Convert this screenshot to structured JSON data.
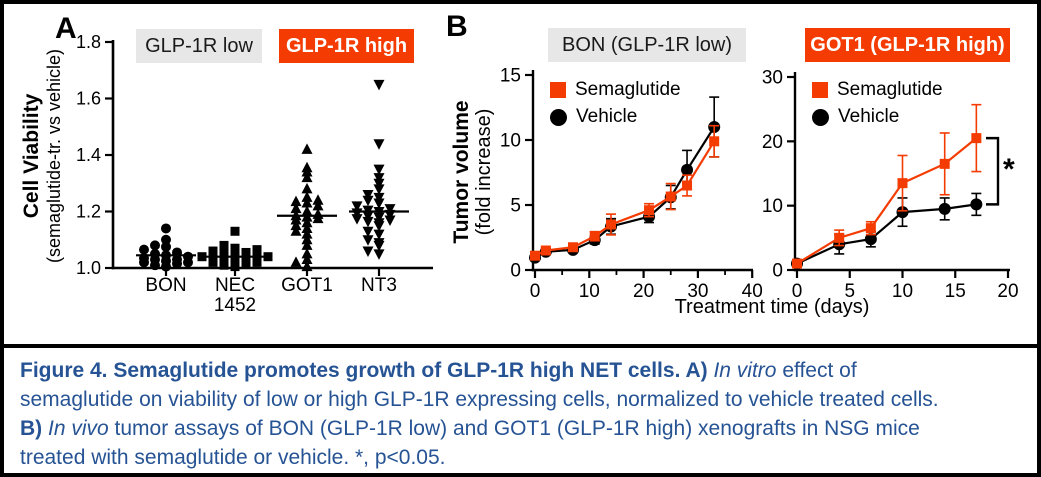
{
  "figure": {
    "panel_a_label": "A",
    "panel_b_label": "B",
    "colors": {
      "accent_red": "#F43B02",
      "box_gray": "#E7E7E7",
      "caption_blue": "#265394",
      "black": "#000000"
    },
    "panel_a": {
      "group_low_label": "GLP-1R low",
      "group_high_label": "GLP-1R high",
      "y_title": "Cell Viability",
      "y_subtitle": "(semaglutide-tr. vs vehicle)"
    },
    "panel_b": {
      "left_title": "BON (GLP-1R low)",
      "right_title": "GOT1 (GLP-1R high)",
      "y_title": "Tumor volume",
      "y_subtitle": "(fold increase)",
      "x_title": "Treatment time (days)",
      "legend": [
        "Semaglutide",
        "Vehicle"
      ],
      "significance": "*"
    }
  },
  "chart_data": [
    {
      "id": "panel-a",
      "type": "scatter",
      "title": "Cell viability of NET cell lines, semaglutide-treated vs vehicle",
      "ylabel": "Cell Viability (semaglutide-tr. vs vehicle)",
      "ylim": [
        1.0,
        1.8
      ],
      "yticks": [
        1.0,
        1.2,
        1.4,
        1.6,
        1.8
      ],
      "categories": [
        "BON",
        "NEC 1452",
        "GOT1",
        "NT3"
      ],
      "category_markers": [
        "circle",
        "square",
        "triangle-up",
        "triangle-down"
      ],
      "groups": [
        {
          "label": "GLP-1R low",
          "categories": [
            "BON",
            "NEC 1452"
          ]
        },
        {
          "label": "GLP-1R high",
          "categories": [
            "GOT1",
            "NT3"
          ]
        }
      ],
      "values": {
        "BON": [
          1.005,
          1.01,
          1.015,
          1.02,
          1.02,
          1.025,
          1.03,
          1.03,
          1.035,
          1.04,
          1.045,
          1.05,
          1.055,
          1.065,
          1.075,
          1.08,
          1.1,
          1.14
        ],
        "NEC 1452": [
          1.005,
          1.01,
          1.015,
          1.02,
          1.02,
          1.025,
          1.025,
          1.03,
          1.03,
          1.035,
          1.04,
          1.04,
          1.045,
          1.05,
          1.055,
          1.06,
          1.065,
          1.07,
          1.08,
          1.13
        ],
        "GOT1": [
          1.005,
          1.02,
          1.03,
          1.05,
          1.08,
          1.1,
          1.12,
          1.13,
          1.14,
          1.15,
          1.16,
          1.17,
          1.175,
          1.18,
          1.185,
          1.19,
          1.2,
          1.21,
          1.22,
          1.23,
          1.235,
          1.24,
          1.25,
          1.28,
          1.32,
          1.34,
          1.355,
          1.42
        ],
        "NT3": [
          1.05,
          1.06,
          1.08,
          1.09,
          1.1,
          1.12,
          1.13,
          1.15,
          1.16,
          1.165,
          1.17,
          1.175,
          1.18,
          1.185,
          1.19,
          1.195,
          1.2,
          1.205,
          1.21,
          1.22,
          1.23,
          1.24,
          1.25,
          1.26,
          1.28,
          1.3,
          1.32,
          1.35,
          1.44,
          1.65
        ]
      },
      "means": {
        "BON": 1.045,
        "NEC 1452": 1.04,
        "GOT1": 1.185,
        "NT3": 1.2
      }
    },
    {
      "id": "panel-b-left",
      "type": "line",
      "title": "BON (GLP-1R low)",
      "xlabel": "Treatment time (days)",
      "ylabel": "Tumor volume (fold increase)",
      "xlim": [
        0,
        40
      ],
      "ylim": [
        0,
        15
      ],
      "xticks": [
        0,
        10,
        20,
        30,
        40
      ],
      "xminorticks": [
        5,
        15,
        25,
        35
      ],
      "yticks": [
        0,
        5,
        10,
        15
      ],
      "x": [
        0,
        2,
        7,
        11,
        14,
        21,
        25,
        28,
        33
      ],
      "series": [
        {
          "name": "Semaglutide",
          "color": "#F43B02",
          "marker": "square",
          "values": [
            1.1,
            1.5,
            1.75,
            2.6,
            3.5,
            4.6,
            5.65,
            6.5,
            9.9
          ],
          "errors": [
            0.15,
            0.2,
            0.3,
            0.35,
            0.8,
            0.5,
            1.0,
            0.8,
            1.2
          ]
        },
        {
          "name": "Vehicle",
          "color": "#000000",
          "marker": "circle",
          "values": [
            0.95,
            1.4,
            1.55,
            2.3,
            3.35,
            4.1,
            5.6,
            7.7,
            11.0
          ],
          "errors": [
            0.1,
            0.15,
            0.2,
            0.3,
            0.6,
            0.45,
            0.9,
            1.5,
            2.3
          ]
        }
      ]
    },
    {
      "id": "panel-b-right",
      "type": "line",
      "title": "GOT1 (GLP-1R high)",
      "xlabel": "Treatment time (days)",
      "ylabel": "Tumor volume (fold increase)",
      "xlim": [
        0,
        20
      ],
      "ylim": [
        0,
        30
      ],
      "xticks": [
        0,
        5,
        10,
        15,
        20
      ],
      "xminorticks": [],
      "yticks": [
        0,
        10,
        20,
        30
      ],
      "x": [
        0,
        4,
        7,
        10,
        14,
        17
      ],
      "series": [
        {
          "name": "Semaglutide",
          "color": "#F43B02",
          "marker": "square",
          "values": [
            1.0,
            5.0,
            6.5,
            13.5,
            16.5,
            20.5
          ],
          "errors": [
            0.3,
            1.2,
            1.0,
            4.3,
            4.8,
            5.2
          ]
        },
        {
          "name": "Vehicle",
          "color": "#000000",
          "marker": "circle",
          "values": [
            1.0,
            4.0,
            4.8,
            9.0,
            9.5,
            10.2
          ],
          "errors": [
            0.3,
            1.5,
            1.2,
            2.2,
            1.7,
            1.7
          ]
        }
      ],
      "significance": {
        "label": "*",
        "between": [
          "Semaglutide",
          "Vehicle"
        ]
      }
    }
  ],
  "caption": {
    "segments": [
      {
        "t": "Figure 4. Semaglutide promotes growth of GLP-1R high NET cells. A) ",
        "b": 1
      },
      {
        "t": "In vitro",
        "i": 1
      },
      {
        "t": " effect of",
        "br": 1
      },
      {
        "t": "semaglutide on viability of low or high GLP-1R expressing cells, normalized to vehicle treated cells.",
        "br": 1
      },
      {
        "t": "B) ",
        "b": 1
      },
      {
        "t": "In vivo",
        "i": 1
      },
      {
        "t": " tumor assays of BON (GLP-1R low) and GOT1 (GLP-1R high) xenografts in NSG mice",
        "br": 1
      },
      {
        "t": "treated with semaglutide or vehicle. *, p<0.05."
      }
    ]
  }
}
